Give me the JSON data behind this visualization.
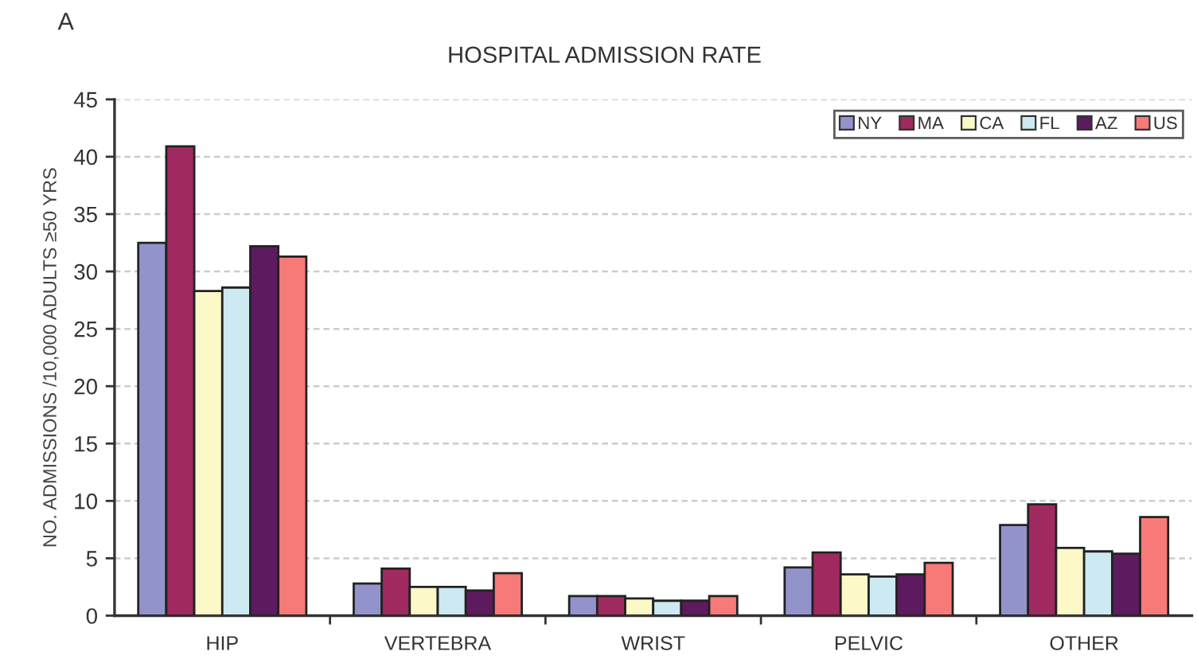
{
  "chart_data": {
    "type": "bar",
    "title": "HOSPITAL ADMISSION RATE",
    "ylabel": "NO. ADMISSIONS /10,000 ADULTS ≥50 YRS",
    "annotations": [
      "A"
    ],
    "categories": [
      "HIP",
      "VERTEBRA",
      "WRIST",
      "PELVIC",
      "OTHER"
    ],
    "series": [
      {
        "name": "NY",
        "color": "#9393cc",
        "values": [
          32.5,
          2.8,
          1.7,
          4.2,
          7.9
        ]
      },
      {
        "name": "MA",
        "color": "#a02a60",
        "values": [
          40.9,
          4.1,
          1.7,
          5.5,
          9.7
        ]
      },
      {
        "name": "CA",
        "color": "#fdf8c8",
        "values": [
          28.3,
          2.5,
          1.5,
          3.6,
          5.9
        ]
      },
      {
        "name": "FL",
        "color": "#cde9f2",
        "values": [
          28.6,
          2.5,
          1.3,
          3.4,
          5.6
        ]
      },
      {
        "name": "AZ",
        "color": "#5e1a5e",
        "values": [
          32.2,
          2.2,
          1.3,
          3.6,
          5.4
        ]
      },
      {
        "name": "US",
        "color": "#f77a78",
        "values": [
          31.3,
          3.7,
          1.7,
          4.6,
          8.6
        ]
      }
    ],
    "ylim": [
      0,
      45
    ],
    "yticks": [
      0,
      5,
      10,
      15,
      20,
      25,
      30,
      35,
      40,
      45
    ],
    "grid": "y",
    "legend": "top right"
  }
}
